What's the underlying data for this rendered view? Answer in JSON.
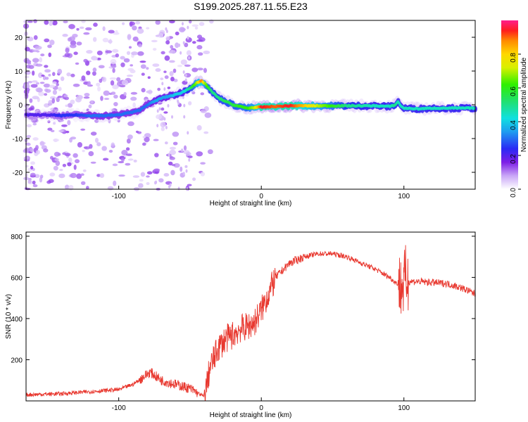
{
  "title": "S199.2025.287.11.55.E23",
  "chart_data": [
    {
      "type": "heatmap",
      "xlabel": "Height of straight line (km)",
      "ylabel": "Frequency (Hz)",
      "xlim": [
        -165,
        150
      ],
      "ylim": [
        -25,
        25
      ],
      "xticks": [
        "-100",
        "0",
        "100"
      ],
      "xtick_values": [
        -100,
        0,
        100
      ],
      "yticks": [
        "20",
        "10",
        "0",
        "-10",
        "-20"
      ],
      "ytick_values": [
        20,
        10,
        0,
        -10,
        -20
      ],
      "colorbar": {
        "label": "Normalized spectral amplitude",
        "range": [
          0,
          1
        ],
        "ticks": [
          "0.0",
          "0.2",
          "0.4",
          "0.6",
          "0.8"
        ],
        "tick_values": [
          0.0,
          0.2,
          0.4,
          0.6,
          0.8
        ]
      },
      "ridge": {
        "x": [
          -165,
          -150,
          -140,
          -130,
          -120,
          -110,
          -100,
          -95,
          -90,
          -85,
          -80,
          -75,
          -70,
          -65,
          -60,
          -55,
          -50,
          -45,
          -42,
          -40,
          -35,
          -30,
          -25,
          -20,
          -15,
          -10,
          -5,
          0,
          10,
          20,
          40,
          60,
          80,
          90,
          94,
          96,
          98,
          100,
          110,
          120,
          130,
          140,
          150
        ],
        "freq": [
          -3,
          -3,
          -3.2,
          -3,
          -3.2,
          -3.2,
          -3,
          -2.5,
          -2.2,
          -1.5,
          0,
          1,
          2,
          2.5,
          3,
          3.8,
          5,
          6.5,
          7,
          6.5,
          4,
          2,
          1,
          0,
          -0.5,
          -1,
          -0.8,
          -0.7,
          -0.5,
          -0.3,
          -0.3,
          -0.3,
          -0.3,
          -0.5,
          0,
          1,
          -0.5,
          -1,
          -1.2,
          -1,
          -1,
          -1,
          -1
        ],
        "amp": [
          0.2,
          0.2,
          0.25,
          0.25,
          0.3,
          0.3,
          0.3,
          0.3,
          0.3,
          0.3,
          0.3,
          0.35,
          0.35,
          0.35,
          0.4,
          0.4,
          0.5,
          0.7,
          0.9,
          0.7,
          0.5,
          0.5,
          0.55,
          0.55,
          0.6,
          0.6,
          0.7,
          0.95,
          0.9,
          0.95,
          0.7,
          0.5,
          0.45,
          0.45,
          0.5,
          0.45,
          0.45,
          0.45,
          0.45,
          0.45,
          0.45,
          0.45,
          0.45
        ]
      }
    },
    {
      "type": "line",
      "xlabel": "Height of straight line (km)",
      "ylabel": "SNR (10 * v/v)",
      "xlim": [
        -165,
        150
      ],
      "ylim": [
        0,
        820
      ],
      "xticks": [
        "-100",
        "0",
        "100"
      ],
      "xtick_values": [
        -100,
        0,
        100
      ],
      "yticks": [
        "800",
        "600",
        "400",
        "200"
      ],
      "ytick_values": [
        800,
        600,
        400,
        200
      ],
      "series": [
        {
          "name": "SNR",
          "color": "#e8382f",
          "x": [
            -165,
            -140,
            -120,
            -100,
            -90,
            -82,
            -78,
            -70,
            -60,
            -50,
            -45,
            -40,
            -36,
            -30,
            -25,
            -20,
            -15,
            -10,
            -5,
            0,
            5,
            10,
            20,
            30,
            40,
            50,
            60,
            70,
            80,
            90,
            95,
            98,
            100,
            101,
            103,
            110,
            120,
            130,
            140,
            150
          ],
          "y": [
            30,
            35,
            45,
            55,
            80,
            120,
            140,
            100,
            80,
            60,
            40,
            20,
            160,
            260,
            300,
            320,
            350,
            360,
            380,
            440,
            520,
            600,
            670,
            700,
            715,
            715,
            700,
            670,
            640,
            600,
            570,
            560,
            560,
            600,
            580,
            580,
            575,
            570,
            550,
            520
          ]
        }
      ]
    }
  ],
  "colors": {
    "line": "#e8382f",
    "axis": "#000000"
  }
}
